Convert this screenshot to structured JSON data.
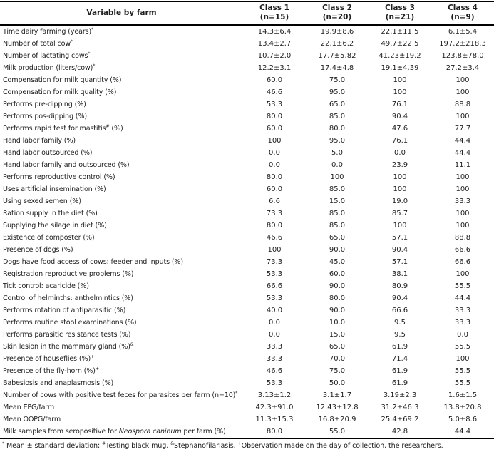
{
  "colors": {
    "text": "#1e1e1e",
    "border": "#000000",
    "background": "#ffffff"
  },
  "table": {
    "variable_header": "Variable by farm",
    "class_headers": [
      {
        "line1": "Class 1",
        "line2": "(n=15)"
      },
      {
        "line1": "Class 2",
        "line2": "(n=20)"
      },
      {
        "line1": "Class 3",
        "line2": "(n=21)"
      },
      {
        "line1": "Class 4",
        "line2": "(n=9)"
      }
    ],
    "rows": [
      {
        "label": [
          {
            "t": "Time dairy farming (years)"
          },
          {
            "t": "*",
            "s": "sup"
          }
        ],
        "values": [
          "14.3±6.4",
          "19.9±8.6",
          "22.1±11.5",
          "6.1±5.4"
        ]
      },
      {
        "label": [
          {
            "t": "Number of total cow"
          },
          {
            "t": "*",
            "s": "sup"
          }
        ],
        "values": [
          "13.4±2.7",
          "22.1±6.2",
          "49.7±22.5",
          "197.2±218.3"
        ]
      },
      {
        "label": [
          {
            "t": "Number of lactating cows"
          },
          {
            "t": "*",
            "s": "sup"
          }
        ],
        "values": [
          "10.7±2.0",
          "17.7±5.82",
          "41.23±19.2",
          "123.8±78.0"
        ]
      },
      {
        "label": [
          {
            "t": "Milk production (liters/cow)"
          },
          {
            "t": "*",
            "s": "sup"
          }
        ],
        "values": [
          "12.2±3.1",
          "17.4±4.8",
          "19.1±4.39",
          "27.2±3.4"
        ]
      },
      {
        "label": [
          {
            "t": "Compensation for milk quantity (%)"
          }
        ],
        "values": [
          "60.0",
          "75.0",
          "100",
          "100"
        ]
      },
      {
        "label": [
          {
            "t": "Compensation for milk quality (%)"
          }
        ],
        "values": [
          "46.6",
          "95.0",
          "100",
          "100"
        ]
      },
      {
        "label": [
          {
            "t": "Performs pre-dipping (%)"
          }
        ],
        "values": [
          "53.3",
          "65.0",
          "76.1",
          "88.8"
        ]
      },
      {
        "label": [
          {
            "t": "Performs pos-dipping (%)"
          }
        ],
        "values": [
          "80.0",
          "85.0",
          "90.4",
          "100"
        ]
      },
      {
        "label": [
          {
            "t": "Performs rapid test for mastitis"
          },
          {
            "t": "#",
            "s": "sup"
          },
          {
            "t": " (%)"
          }
        ],
        "values": [
          "60.0",
          "80.0",
          "47.6",
          "77.7"
        ]
      },
      {
        "label": [
          {
            "t": "Hand labor family (%)"
          }
        ],
        "values": [
          "100",
          "95.0",
          "76.1",
          "44.4"
        ]
      },
      {
        "label": [
          {
            "t": "Hand labor outsourced (%)"
          }
        ],
        "values": [
          "0.0",
          "5.0",
          "0.0",
          "44.4"
        ]
      },
      {
        "label": [
          {
            "t": "Hand labor family and outsourced (%)"
          }
        ],
        "values": [
          "0.0",
          "0.0",
          "23.9",
          "11.1"
        ]
      },
      {
        "label": [
          {
            "t": "Performs reproductive control (%)"
          }
        ],
        "values": [
          "80.0",
          "100",
          "100",
          "100"
        ]
      },
      {
        "label": [
          {
            "t": "Uses artificial insemination (%)"
          }
        ],
        "values": [
          "60.0",
          "85.0",
          "100",
          "100"
        ]
      },
      {
        "label": [
          {
            "t": "Using sexed semen (%)"
          }
        ],
        "values": [
          "6.6",
          "15.0",
          "19.0",
          "33.3"
        ]
      },
      {
        "label": [
          {
            "t": "Ration supply in the diet (%)"
          }
        ],
        "values": [
          "73.3",
          "85.0",
          "85.7",
          "100"
        ]
      },
      {
        "label": [
          {
            "t": "Supplying the silage in diet (%)"
          }
        ],
        "values": [
          "80.0",
          "85.0",
          "100",
          "100"
        ]
      },
      {
        "label": [
          {
            "t": "Existence of composter (%)"
          }
        ],
        "values": [
          "46.6",
          "65.0",
          "57.1",
          "88.8"
        ]
      },
      {
        "label": [
          {
            "t": "Presence of dogs (%)"
          }
        ],
        "values": [
          "100",
          "90.0",
          "90.4",
          "66.6"
        ]
      },
      {
        "label": [
          {
            "t": "Dogs have food access of cows: feeder and inputs (%)"
          }
        ],
        "values": [
          "73.3",
          "45.0",
          "57.1",
          "66.6"
        ]
      },
      {
        "label": [
          {
            "t": "Registration reproductive problems (%)"
          }
        ],
        "values": [
          "53.3",
          "60.0",
          "38.1",
          "100"
        ]
      },
      {
        "label": [
          {
            "t": "Tick control: acaricide (%)"
          }
        ],
        "values": [
          "66.6",
          "90.0",
          "80.9",
          "55.5"
        ]
      },
      {
        "label": [
          {
            "t": "Control of helminths: anthelmintics (%)"
          }
        ],
        "values": [
          "53.3",
          "80.0",
          "90.4",
          "44.4"
        ]
      },
      {
        "label": [
          {
            "t": "Performs rotation of antiparasitic (%)"
          }
        ],
        "values": [
          "40.0",
          "90.0",
          "66.6",
          "33.3"
        ]
      },
      {
        "label": [
          {
            "t": "Performs routine stool examinations (%)"
          }
        ],
        "values": [
          "0.0",
          "10.0",
          "9.5",
          "33.3"
        ]
      },
      {
        "label": [
          {
            "t": "Performs parasitic resistance tests (%)"
          }
        ],
        "values": [
          "0.0",
          "15.0",
          "9.5",
          "0.0"
        ]
      },
      {
        "label": [
          {
            "t": "Skin lesion in the mammary gland (%)"
          },
          {
            "t": "&",
            "s": "sup"
          }
        ],
        "values": [
          "33.3",
          "65.0",
          "61.9",
          "55.5"
        ]
      },
      {
        "label": [
          {
            "t": "Presence of houseflies (%)"
          },
          {
            "t": "+",
            "s": "sup"
          }
        ],
        "values": [
          "33.3",
          "70.0",
          "71.4",
          "100"
        ]
      },
      {
        "label": [
          {
            "t": "Presence of the fly-horn (%)"
          },
          {
            "t": "+",
            "s": "sup"
          }
        ],
        "values": [
          "46.6",
          "75.0",
          "61.9",
          "55.5"
        ]
      },
      {
        "label": [
          {
            "t": "Babesiosis and anaplasmosis (%)"
          }
        ],
        "values": [
          "53.3",
          "50.0",
          "61.9",
          "55.5"
        ]
      },
      {
        "label": [
          {
            "t": "Number of cows with positive test feces for parasites per farm (n=10)"
          },
          {
            "t": "*",
            "s": "sup"
          }
        ],
        "values": [
          "3.13±1.2",
          "3.1±1.7",
          "3.19±2.3",
          "1.6±1.5"
        ]
      },
      {
        "label": [
          {
            "t": "Mean EPG/farm"
          }
        ],
        "values": [
          "42.3±91.0",
          "12.43±12.8",
          "31.2±46.3",
          "13.8±20.8"
        ]
      },
      {
        "label": [
          {
            "t": "Mean OOPG/farm"
          }
        ],
        "values": [
          "11.3±15.3",
          "16.8±20.9",
          "25.4±69.2",
          "5.0±8.6"
        ]
      },
      {
        "label": [
          {
            "t": "Milk samples from seropositive for "
          },
          {
            "t": "Neospora caninum",
            "s": "i"
          },
          {
            "t": " per farm (%)"
          }
        ],
        "values": [
          "80.0",
          "55.0",
          "42.8",
          "44.4"
        ]
      }
    ]
  },
  "footnote": {
    "segments": [
      {
        "t": "*",
        "s": "sup"
      },
      {
        "t": " Mean ± standard deviation; "
      },
      {
        "t": "#",
        "s": "sup"
      },
      {
        "t": "Testing black mug. "
      },
      {
        "t": "&",
        "s": "sup"
      },
      {
        "t": "Stephanofilariasis. "
      },
      {
        "t": "+",
        "s": "sup"
      },
      {
        "t": "Observation made on the day of collection, the researchers."
      }
    ]
  }
}
